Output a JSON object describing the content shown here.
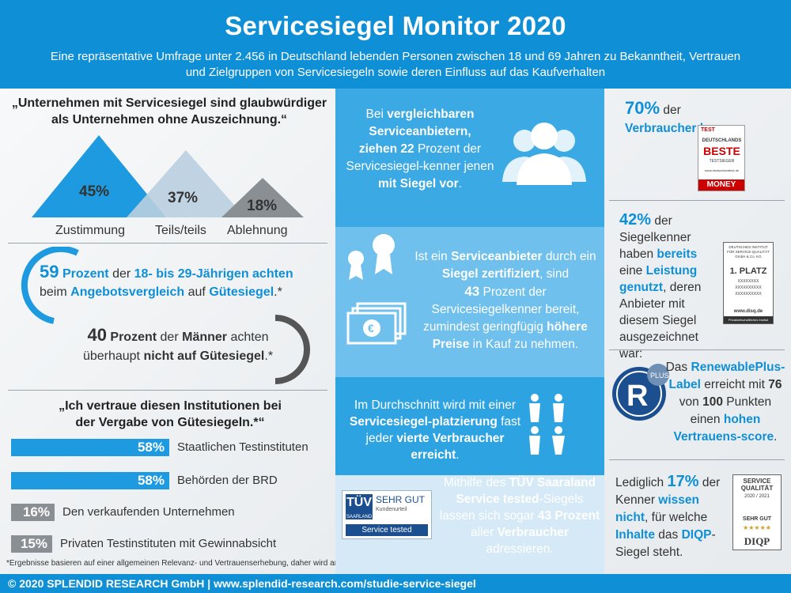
{
  "header": {
    "title": "Servicesiegel Monitor 2020",
    "subtitle": "Eine repräsentative Umfrage unter 2.456 in Deutschland lebenden Personen zwischen 18 und 69 Jahren zu Bekanntheit, Vertrauen und Zielgruppen von Servicesiegeln sowie deren Einfluss auf das Kaufverhalten"
  },
  "left": {
    "quote1": "„Unternehmen mit Servicesiegel sind glaubwürdiger als Unternehmen ohne Auszeichnung.“",
    "triangles": [
      {
        "label": "Zustimmung",
        "value": "45%",
        "color": "#1e9ae0"
      },
      {
        "label": "Teils/teils",
        "value": "37%",
        "color": "#b9cfe0"
      },
      {
        "label": "Ablehnung",
        "value": "18%",
        "color": "#8a8f94"
      }
    ],
    "stat59": {
      "num": "59",
      "w1": "Prozent",
      "w2": "der",
      "w3": "18- bis 29-Jährigen achten",
      "w4": "beim",
      "w5": "Angebotsvergleich",
      "w6": "auf",
      "w7": "Gütesiegel",
      "w8": ".*"
    },
    "stat40": {
      "num": "40",
      "w1": "Prozent",
      "w2": "der",
      "w3": "Männer",
      "w4": "achten",
      "w5": "überhaupt",
      "w6": "nicht auf Gütesiegel",
      "w7": ".*"
    },
    "quote2": "„Ich vertraue diesen Institutionen bei der Vergabe von Gütesiegeln.*“",
    "bars": [
      {
        "value": 58,
        "label_pct": "58%",
        "label": "Staatlichen Testinstituten",
        "color": "#1e9ae0"
      },
      {
        "value": 58,
        "label_pct": "58%",
        "label": "Behörden der BRD",
        "color": "#1e9ae0"
      },
      {
        "value": 16,
        "label_pct": "16%",
        "label": "Den verkaufenden Unternehmen",
        "color": "#8a8f94"
      },
      {
        "value": 15,
        "label_pct": "15%",
        "label": "Privaten Testinstituten mit Gewinnabsicht",
        "color": "#8a8f94"
      }
    ],
    "footnote": "*Ergebnisse basieren auf einer allgemeinen Relevanz- und Vertrauenserhebung, daher wird an dieser Stelle der Überbegriff ‚Gütesiegel‘ genutzt."
  },
  "middle": {
    "b1": {
      "a": "Bei",
      "b": "vergleichbaren Serviceanbietern,",
      "c": "ziehen 22",
      "d": "Prozent der Servicesiegel-kenner jenen",
      "e": "mit Siegel vor",
      "f": "."
    },
    "b2": {
      "a": "Ist ein",
      "b": "Serviceanbieter",
      "c": "durch ein",
      "d": "Siegel zertifiziert",
      "e": ", sind",
      "f": "43",
      "g": "Prozent der Servicesiegelkenner bereit, zumindest geringfügig",
      "h": "höhere Preise",
      "i": "in Kauf zu nehmen."
    },
    "b3": {
      "a": "Im Durchschnitt wird mit einer",
      "b": "Servicesiegel-platzierung",
      "c": "fast jeder",
      "d": "vierte Verbraucher erreicht",
      "e": "."
    },
    "b4": {
      "a": "Mithilfe des",
      "b": "TÜV Saaraland Service tested",
      "c": "-Siegels lassen sich sogar",
      "d": "43 Prozent",
      "e": "aller",
      "f": "Verbraucher",
      "g": "adressieren."
    },
    "tuv": {
      "logo": "TÜV",
      "region": "SAARLAND",
      "grade": "SEHR GUT",
      "sub": "Kundenurteil",
      "band": "Service tested"
    }
  },
  "right": {
    "r1": {
      "pct": "70%",
      "a": "der",
      "b": "Verbraucher kennen",
      "c": ":"
    },
    "best": {
      "top": "TEST",
      "a": "DEUTSCHLANDS",
      "b": "BESTE",
      "c": "TESTSIEGER",
      "url": "www.deutschlandtest.de",
      "brand": "MONEY"
    },
    "r2": {
      "pct": "42%",
      "a": "der Siegelkenner haben",
      "b": "bereits",
      "c": "eine",
      "d": "Leistung genutzt",
      "e": ", deren Anbieter mit diesem Siegel ausgezeichnet war:"
    },
    "disq": {
      "top": "DEUTSCHES INSTITUT FÜR SERVICE-QUALITÄT GmbH & Co. KG",
      "place": "1. PLATZ",
      "x1": "XXXXXXXX",
      "x2": "XXXXXXXXXX",
      "x3": "XXXXXXXXXX",
      "url": "www.disq.de",
      "foot": "Privatwirtschaftliches Institut"
    },
    "r3": {
      "a": "Das",
      "b": "RenewablePlus-Label",
      "c": "erreicht mit",
      "d": "76",
      "e": "von",
      "f": "100",
      "g": "Punkten einen",
      "h": "hohen Vertrauens-score",
      "i": "."
    },
    "plus": "PLUS",
    "r4": {
      "a": "Lediglich",
      "b": "17%",
      "c": "der Kenner",
      "d": "wissen nicht",
      "e": ", für welche",
      "f": "Inhalte",
      "g": "das",
      "h": "DIQP",
      "i": "-Siegel steht."
    },
    "diqp": {
      "t1": "SERVICE",
      "t2": "QUALITÄT",
      "year": "2020 / 2021",
      "grade": "SEHR GUT",
      "brand": "DIQP"
    }
  },
  "footer": "© 2020 SPLENDID RESEARCH GmbH | www.splendid-research.com/studie-service-siegel"
}
